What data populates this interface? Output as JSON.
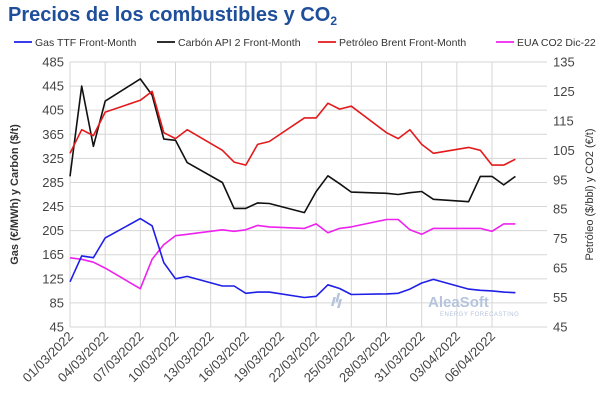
{
  "header": {
    "title_main": "Precios de los combustibles y CO",
    "title_sub": "2"
  },
  "watermark": {
    "brand": "AleaSoft",
    "tagline": "ENERGY FORECASTING"
  },
  "colors": {
    "gas": "#1f1fe8",
    "coal": "#111111",
    "brent": "#e31a1c",
    "co2": "#ee22ee",
    "grid": "#d6d6d6",
    "title": "#1f4e9a"
  },
  "chart_data": {
    "type": "line",
    "dates": [
      "01/03/2022",
      "02/03/2022",
      "03/03/2022",
      "04/03/2022",
      "07/03/2022",
      "08/03/2022",
      "09/03/2022",
      "10/03/2022",
      "11/03/2022",
      "14/03/2022",
      "15/03/2022",
      "16/03/2022",
      "17/03/2022",
      "18/03/2022",
      "21/03/2022",
      "22/03/2022",
      "23/03/2022",
      "24/03/2022",
      "25/03/2022",
      "28/03/2022",
      "29/03/2022",
      "30/03/2022",
      "31/03/2022",
      "01/04/2022",
      "04/04/2022",
      "05/04/2022",
      "06/04/2022",
      "07/04/2022",
      "08/04/2022"
    ],
    "x_tick_labels": [
      "01/03/2022",
      "04/03/2022",
      "07/03/2022",
      "10/03/2022",
      "13/03/2022",
      "16/03/2022",
      "19/03/2022",
      "22/03/2022",
      "25/03/2022",
      "28/03/2022",
      "31/03/2022",
      "03/04/2022",
      "06/04/2022"
    ],
    "y_left": {
      "label": "Gas (€/MWh) y Carbón ($/t)",
      "min": 45,
      "max": 485,
      "ticks": [
        45,
        85,
        125,
        165,
        205,
        245,
        285,
        325,
        365,
        405,
        445,
        485
      ]
    },
    "y_right": {
      "label": "Petróleo ($/bbl) y CO2 (€/t)",
      "min": 45,
      "max": 135,
      "ticks": [
        45,
        55,
        65,
        75,
        85,
        95,
        105,
        115,
        125,
        135
      ]
    },
    "grid": true,
    "legend_position": "top",
    "series": [
      {
        "name": "Gas TTF Front-Month",
        "axis": "left",
        "color": "#1f1fe8",
        "values": [
          120,
          163,
          160,
          193,
          225,
          213,
          152,
          125,
          129,
          113,
          113,
          101,
          103,
          103,
          94,
          96,
          115,
          109,
          99,
          100,
          101,
          108,
          118,
          124,
          108,
          106,
          105,
          103,
          102
        ]
      },
      {
        "name": "Carbón API 2 Front-Month",
        "axis": "left",
        "color": "#111111",
        "values": [
          295,
          445,
          345,
          420,
          457,
          430,
          357,
          355,
          318,
          285,
          242,
          242,
          251,
          250,
          235,
          270,
          296,
          283,
          269,
          267,
          265,
          268,
          270,
          257,
          253,
          295,
          295,
          281,
          295
        ]
      },
      {
        "name": "Petróleo Brent Front-Month",
        "axis": "right",
        "color": "#e31a1c",
        "values": [
          104,
          112,
          110,
          118,
          122,
          125,
          111,
          109,
          112,
          105,
          101,
          100,
          107,
          108,
          116,
          116,
          121,
          119,
          120,
          111,
          109,
          112,
          107,
          104,
          106,
          105,
          100,
          100,
          102
        ]
      },
      {
        "name": "EUA CO2 Dic-22",
        "axis": "right",
        "color": "#ee22ee",
        "values": [
          68.5,
          68,
          67,
          65,
          58,
          68,
          73,
          76,
          76.5,
          78,
          77.5,
          78,
          79.5,
          79,
          78.5,
          80,
          77,
          78.5,
          79,
          81.5,
          81.5,
          78,
          76.5,
          78.5,
          78.5,
          78.5,
          77.5,
          80,
          80
        ]
      }
    ]
  }
}
